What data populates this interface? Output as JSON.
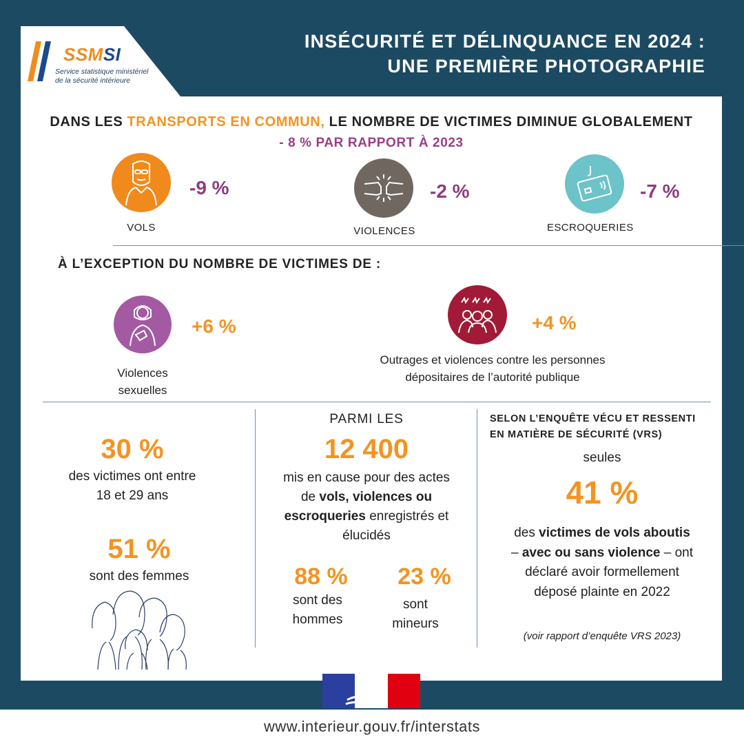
{
  "logo": {
    "name_a": "SSM",
    "name_b": "SI",
    "line1": "Service statistique ministériel",
    "line2": "de la sécurité intérieure"
  },
  "title": {
    "line1": "INSÉCURITÉ ET DÉLINQUANCE EN 2024 :",
    "line2": "UNE PREMIÈRE PHOTOGRAPHIE"
  },
  "headline": {
    "pre": "DANS LES ",
    "highlight": "TRANSPORTS EN COMMUN,",
    "post": " LE NOMBRE DE VICTIMES DIMINUE GLOBALEMENT",
    "sub": "- 8 % PAR RAPPORT À 2023"
  },
  "categories": [
    {
      "label": "VOLS",
      "value": "-9 %",
      "color": "#f08a1c",
      "icon": "masked-thief-icon"
    },
    {
      "label": "VIOLENCES",
      "value": "-2 %",
      "color": "#6f6760",
      "icon": "fists-clash-icon"
    },
    {
      "label": "ESCROQUERIES",
      "value": "-7 %",
      "color": "#6cc3c9",
      "icon": "card-phishing-icon"
    }
  ],
  "exception": {
    "title": "À L’EXCEPTION DU NOMBRE DE VICTIMES DE :",
    "items": [
      {
        "label1": "Violences",
        "label2": "sexuelles",
        "value": "+6 %",
        "color": "#a35aa3",
        "icon": "victim-person-icon"
      },
      {
        "label1": "Outrages et violences contre les personnes",
        "label2": "dépositaires de l’autorité publique",
        "value": "+4 %",
        "color": "#a11a37",
        "icon": "angry-group-icon"
      }
    ]
  },
  "stats_left": {
    "v1": "30 %",
    "t1a": "des victimes ont entre",
    "t1b": "18 et 29 ans",
    "v2": "51 %",
    "t2": "sont des femmes"
  },
  "stats_mid": {
    "title": "PARMI LES",
    "value": "12 400",
    "l1": "mis en cause pour des actes",
    "l2a": "de ",
    "l2b": "vols, violences ou",
    "l3a": "escroqueries",
    "l3b": " enregistrés et",
    "l4": "élucidés",
    "v_men": "88 %",
    "t_men1": "sont des",
    "t_men2": "hommes",
    "v_min": "23 %",
    "t_min1": "sont",
    "t_min2": "mineurs"
  },
  "stats_right": {
    "title1": "SELON L’ENQUÊTE VÉCU ET RESSENTI",
    "title2": "EN MATIÈRE DE SÉCURITÉ (VRS)",
    "pre": "seules",
    "value": "41 %",
    "l1a": "des ",
    "l1b": "victimes de vols aboutis",
    "l2a": "– ",
    "l2b": "avec ou sans violence",
    "l2c": " –  ont",
    "l3": "déclaré avoir formellement",
    "l4": "déposé plainte en 2022",
    "note": "(voir rapport d’enquête VRS 2023)"
  },
  "footer": {
    "url": "www.interieur.gouv.fr/interstats"
  },
  "colors": {
    "navy": "#1d4a63",
    "orange": "#f29422",
    "purple": "#8d3c7f",
    "flag_blue": "#2b3f9e",
    "flag_red": "#e1000f"
  }
}
